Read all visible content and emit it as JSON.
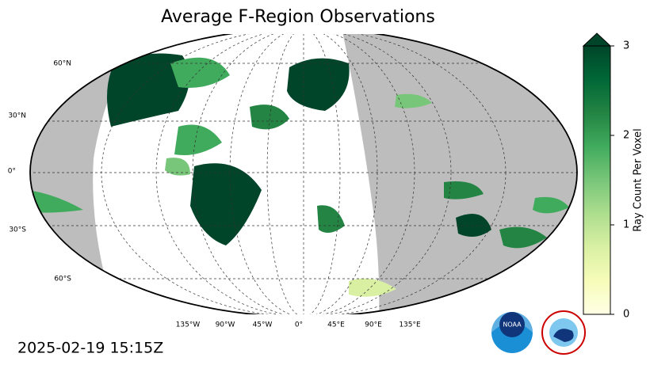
{
  "title": "Average F-Region Observations",
  "timestamp": "2025-02-19 15:15Z",
  "map": {
    "lat_labels": [
      "60°N",
      "30°N",
      "0°",
      "30°S",
      "60°S"
    ],
    "lon_labels": [
      "135°W",
      "90°W",
      "45°W",
      "0°",
      "45°E",
      "90°E",
      "135°E"
    ]
  },
  "colorbar": {
    "label": "Ray Count Per Voxel",
    "range": [
      0,
      3
    ],
    "ticks": [
      0,
      1,
      2,
      3
    ],
    "colors": [
      "#ffffe5",
      "#f7fcb9",
      "#d9f0a3",
      "#addd8e",
      "#78c679",
      "#41ab5d",
      "#238443",
      "#006837",
      "#004529"
    ]
  }
}
